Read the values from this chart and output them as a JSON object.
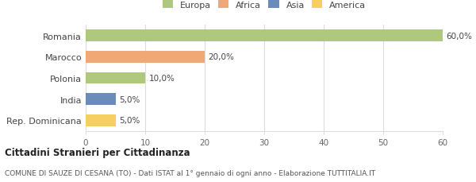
{
  "categories": [
    "Romania",
    "Marocco",
    "Polonia",
    "India",
    "Rep. Dominicana"
  ],
  "values": [
    60.0,
    20.0,
    10.0,
    5.0,
    5.0
  ],
  "continent_colors": {
    "Europa": "#aec97e",
    "Africa": "#f0a876",
    "Asia": "#6b8cba",
    "America": "#f5d060"
  },
  "bar_continents": [
    "Europa",
    "Africa",
    "Europa",
    "Asia",
    "America"
  ],
  "labels": [
    "60,0%",
    "20,0%",
    "10,0%",
    "5,0%",
    "5,0%"
  ],
  "xlim": [
    0,
    60
  ],
  "xticks": [
    0,
    10,
    20,
    30,
    40,
    50,
    60
  ],
  "title": "Cittadini Stranieri per Cittadinanza",
  "subtitle": "COMUNE DI SAUZE DI CESANA (TO) - Dati ISTAT al 1° gennaio di ogni anno - Elaborazione TUTTITALIA.IT",
  "legend_entries": [
    "Europa",
    "Africa",
    "Asia",
    "America"
  ],
  "background_color": "#ffffff",
  "bar_height": 0.55,
  "grid_color": "#dddddd"
}
